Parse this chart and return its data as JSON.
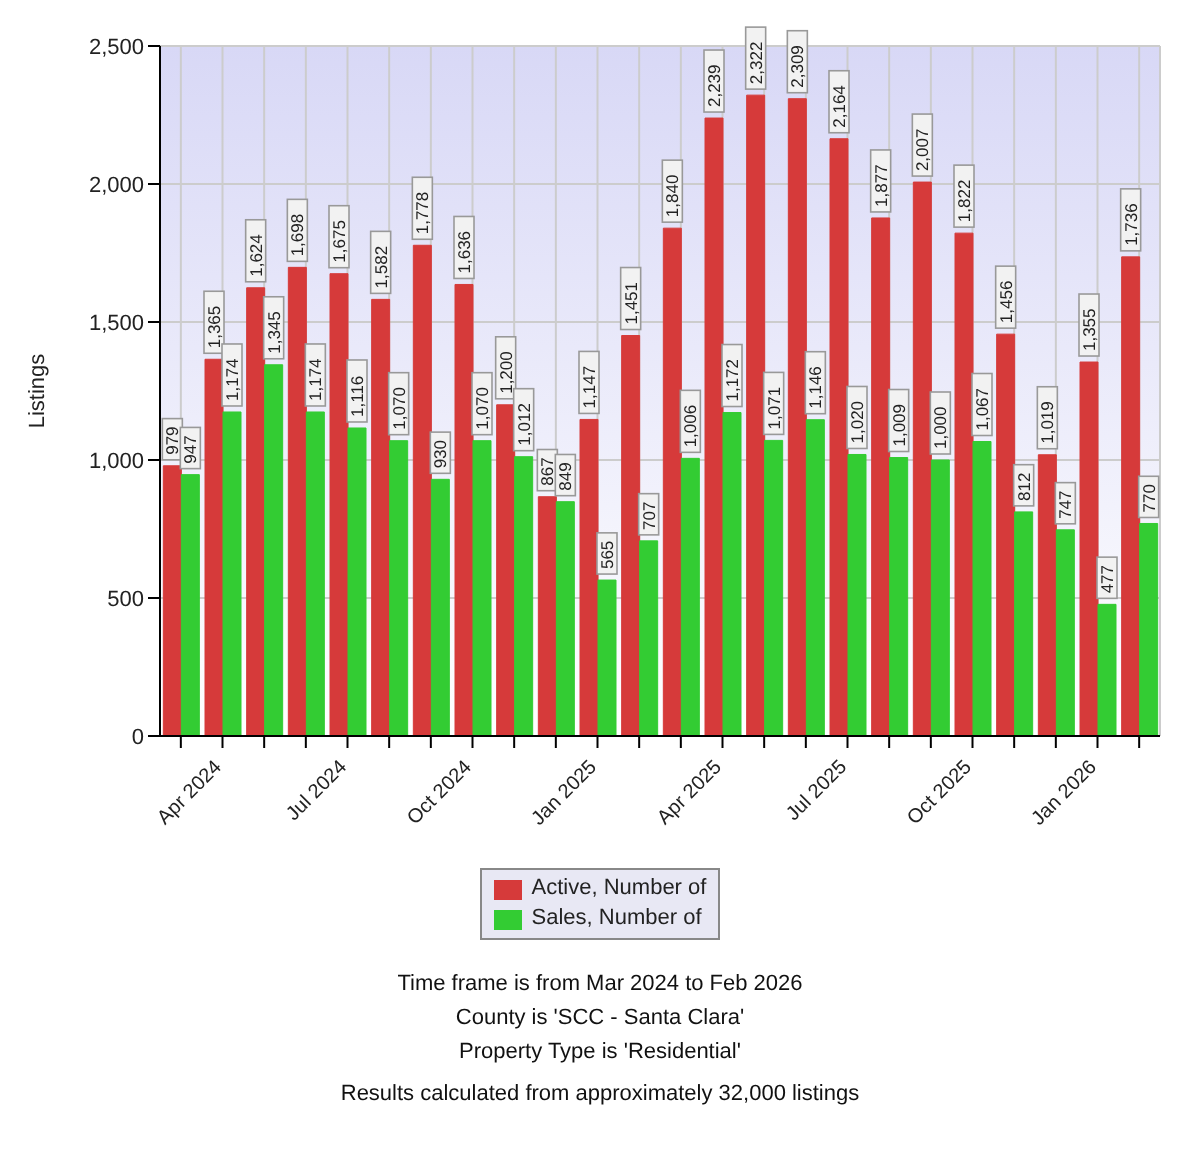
{
  "chart_data": {
    "type": "bar",
    "ylabel": "Listings",
    "categories": [
      null,
      "Apr 2024",
      null,
      null,
      "Jul 2024",
      null,
      null,
      "Oct 2024",
      null,
      null,
      "Jan 2025",
      null,
      null,
      "Apr 2025",
      null,
      null,
      "Jul 2025",
      null,
      null,
      "Oct 2025",
      null,
      null,
      "Jan 2026",
      null
    ],
    "series": [
      {
        "name": "Active, Number of",
        "color": "#d63a3a",
        "values": [
          979,
          1365,
          1624,
          1698,
          1675,
          1582,
          1778,
          1636,
          1200,
          867,
          1147,
          1451,
          1840,
          2239,
          2322,
          2309,
          2164,
          1877,
          2007,
          1822,
          1456,
          1019,
          1355,
          1736
        ],
        "value_labels": [
          "979",
          "1,365",
          "1,624",
          "1,698",
          "1,675",
          "1,582",
          "1,778",
          "1,636",
          "1,200",
          "867",
          "1,147",
          "1,451",
          "1,840",
          "2,239",
          "2,322",
          "2,309",
          "2,164",
          "1,877",
          "2,007",
          "1,822",
          "1,456",
          "1,019",
          "1,355",
          "1,736"
        ]
      },
      {
        "name": "Sales, Number of",
        "color": "#33cc33",
        "values": [
          947,
          1174,
          1345,
          1174,
          1116,
          1070,
          930,
          1070,
          1012,
          849,
          565,
          707,
          1006,
          1172,
          1071,
          1146,
          1020,
          1009,
          1000,
          1067,
          812,
          747,
          477,
          770
        ],
        "value_labels": [
          "947",
          "1,174",
          "1,345",
          "1,174",
          "1,116",
          "1,070",
          "930",
          "1,070",
          "1,012",
          "849",
          "565",
          "707",
          "1,006",
          "1,172",
          "1,071",
          "1,146",
          "1,020",
          "1,009",
          "1,000",
          "1,067",
          "812",
          "747",
          "477",
          "770"
        ]
      }
    ],
    "ylim": [
      0,
      2500
    ],
    "yticks": [
      0,
      500,
      {
        "value": 1000,
        "label": "1,000"
      },
      {
        "value": 1500,
        "label": "1,500"
      },
      {
        "value": 2000,
        "label": "2,000"
      },
      {
        "value": 2500,
        "label": "2,500"
      }
    ],
    "grid": true,
    "legend": "bottom",
    "annotations": [
      "Time frame is from Mar 2024 to Feb 2026",
      "County is 'SCC - Santa Clara'",
      "Property Type is 'Residential'",
      "Results calculated from approximately 32,000 listings"
    ]
  }
}
